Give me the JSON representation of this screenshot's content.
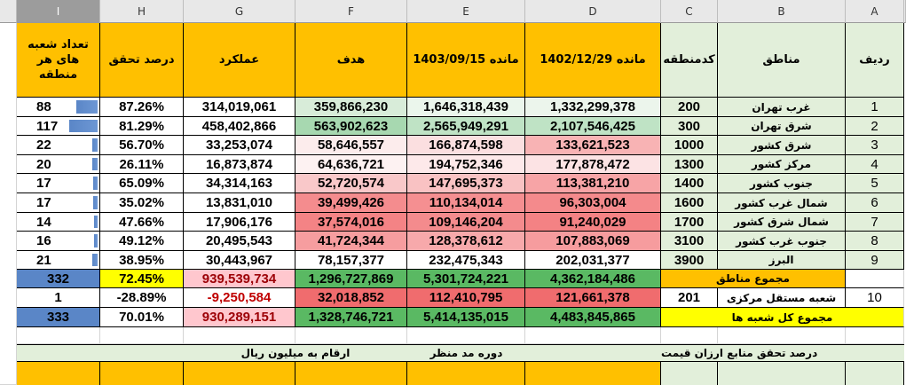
{
  "column_letters": [
    "I",
    "H",
    "G",
    "F",
    "E",
    "D",
    "C",
    "B",
    "A"
  ],
  "selected_column": "I",
  "headers": {
    "I": "تعداد شعبه های هر منطقه",
    "H": "درصد تحقق",
    "G": "عملکرد",
    "F": "هدف",
    "E": "مانده 1403/09/15",
    "D": "مانده 1402/12/29",
    "C": "کدمنطقه",
    "B": "مناطق",
    "A": "ردیف"
  },
  "rows": [
    {
      "A": "1",
      "B": "غرب تهران",
      "C": "200",
      "D": "1,332,299,378",
      "E": "1,646,318,439",
      "F": "359,866,230",
      "G": "314,019,061",
      "H": "87.26%",
      "I": "88",
      "I_fill": 0.26,
      "D_bg": "#ecf5ec",
      "E_bg": "#ebf6ec",
      "F_bg": "#d8ecd9"
    },
    {
      "A": "2",
      "B": "شرق تهران",
      "C": "300",
      "D": "2,107,546,425",
      "E": "2,565,949,291",
      "F": "563,902,623",
      "G": "458,402,866",
      "H": "81.29%",
      "I": "117",
      "I_fill": 0.35,
      "D_bg": "#bfe3c5",
      "E_bg": "#bfe3c5",
      "F_bg": "#a7d8b0"
    },
    {
      "A": "3",
      "B": "شرق کشور",
      "C": "1000",
      "D": "133,621,523",
      "E": "166,874,598",
      "F": "58,646,557",
      "G": "33,253,074",
      "H": "56.70%",
      "I": "22",
      "I_fill": 0.066,
      "D_bg": "#f8b3b4",
      "E_bg": "#fbdfe0",
      "F_bg": "#fcecec"
    },
    {
      "A": "4",
      "B": "مرکز کشور",
      "C": "1300",
      "D": "177,878,472",
      "E": "194,752,346",
      "F": "64,636,721",
      "G": "16,873,874",
      "H": "26.11%",
      "I": "20",
      "I_fill": 0.06,
      "D_bg": "#fce3e4",
      "E_bg": "#fde9ea",
      "F_bg": "#fdf2f2"
    },
    {
      "A": "5",
      "B": "جنوب کشور",
      "C": "1400",
      "D": "113,381,210",
      "E": "147,695,373",
      "F": "52,720,574",
      "G": "34,314,163",
      "H": "65.09%",
      "I": "17",
      "I_fill": 0.051,
      "D_bg": "#f7a4a6",
      "E_bg": "#f9c2c3",
      "F_bg": "#f9c8c9"
    },
    {
      "A": "6",
      "B": "شمال غرب کشور",
      "C": "1600",
      "D": "96,303,004",
      "E": "110,134,014",
      "F": "39,499,426",
      "G": "13,831,010",
      "H": "35.02%",
      "I": "17",
      "I_fill": 0.051,
      "D_bg": "#f48a8c",
      "E_bg": "#f58f91",
      "F_bg": "#f48c8e"
    },
    {
      "A": "7",
      "B": "شمال شرق کشور",
      "C": "1700",
      "D": "91,240,029",
      "E": "109,146,204",
      "F": "37,574,016",
      "G": "17,906,176",
      "H": "47.66%",
      "I": "14",
      "I_fill": 0.042,
      "D_bg": "#f48284",
      "E_bg": "#f48b8d",
      "F_bg": "#f48385"
    },
    {
      "A": "8",
      "B": "جنوب غرب کشور",
      "C": "3100",
      "D": "107,883,069",
      "E": "128,378,612",
      "F": "41,724,344",
      "G": "20,495,543",
      "H": "49.12%",
      "I": "16",
      "I_fill": 0.048,
      "D_bg": "#f69c9e",
      "E_bg": "#f7a9ab",
      "F_bg": "#f69d9f"
    },
    {
      "A": "9",
      "B": "البرز",
      "C": "3900",
      "D": "202,031,377",
      "E": "232,475,343",
      "F": "78,157,377",
      "G": "30,443,967",
      "H": "38.95%",
      "I": "21",
      "I_fill": 0.063,
      "D_bg": "#ffffff",
      "E_bg": "#ffffff",
      "F_bg": "#ffffff"
    }
  ],
  "sum_regions": {
    "label": "مجموع مناطق",
    "D": "4,362,184,486",
    "E": "5,301,724,221",
    "F": "1,296,727,869",
    "G": "939,539,734",
    "H": "72.45%",
    "I": "332",
    "I_fill": 1.0
  },
  "independent": {
    "A": "10",
    "B": "شعبه مستقل مرکزی",
    "C": "201",
    "D": "121,661,378",
    "E": "112,410,795",
    "F": "32,018,852",
    "G": "-9,250,584",
    "H": "-28.89%",
    "I": "1"
  },
  "total": {
    "label": "مجموع کل شعبه ها",
    "D": "4,483,845,865",
    "E": "5,414,135,015",
    "F": "1,328,746,721",
    "G": "930,289,151",
    "H": "70.01%",
    "I": "333",
    "I_fill": 1.0
  },
  "footer": {
    "left_note": "ارقام به میلیون ریال",
    "mid_note": "دوره مد منظر",
    "right_note": "درصد تحقق منابع ارزان قیمت"
  },
  "colors": {
    "orange_header": "#ffc000",
    "pale_green": "#e2efda",
    "green_total": "#5ab963",
    "yellow_total": "#ffff00",
    "red_total": "#f06c6e",
    "pink_value": "#ffc7ce",
    "dark_red_text": "#9c0006",
    "bar_blue": "#5a86c7"
  }
}
